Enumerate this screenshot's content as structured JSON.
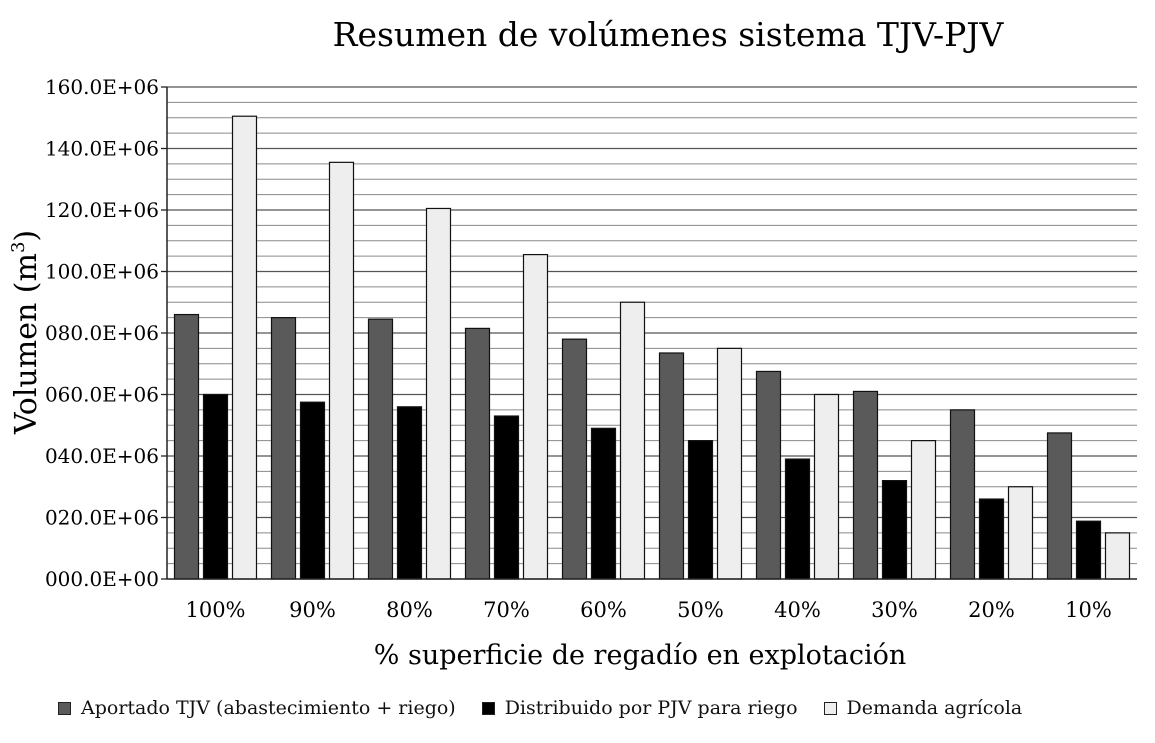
{
  "chart_data": {
    "type": "bar",
    "title": "Resumen de volúmenes sistema TJV-PJV",
    "xlabel": "% superficie de regadío en explotación",
    "ylabel": "Volumen (m",
    "ylabel_sup": "3",
    "ylabel_close": ")",
    "ylim": [
      0,
      160000000
    ],
    "yticks": [
      {
        "value": 0,
        "label": "000.0E+00"
      },
      {
        "value": 20000000,
        "label": "020.0E+06"
      },
      {
        "value": 40000000,
        "label": "040.0E+06"
      },
      {
        "value": 60000000,
        "label": "060.0E+06"
      },
      {
        "value": 80000000,
        "label": "080.0E+06"
      },
      {
        "value": 100000000,
        "label": "100.0E+06"
      },
      {
        "value": 120000000,
        "label": "120.0E+06"
      },
      {
        "value": 140000000,
        "label": "140.0E+06"
      },
      {
        "value": 160000000,
        "label": "160.0E+06"
      }
    ],
    "grid": true,
    "categories": [
      "100%",
      "90%",
      "80%",
      "70%",
      "60%",
      "50%",
      "40%",
      "30%",
      "20%",
      "10%"
    ],
    "series": [
      {
        "name": "Aportado TJV (abastecimiento + riego)",
        "color": "#5a5a5a",
        "values": [
          86000000,
          85000000,
          84500000,
          81500000,
          78000000,
          73500000,
          67500000,
          61000000,
          55000000,
          47500000
        ]
      },
      {
        "name": "Distribuido por PJV para riego",
        "color": "#000000",
        "values": [
          60000000,
          57500000,
          56000000,
          53000000,
          49000000,
          45000000,
          39000000,
          32000000,
          26000000,
          18800000
        ]
      },
      {
        "name": "Demanda agrícola",
        "color": "#eeeeee",
        "values": [
          150500000,
          135500000,
          120500000,
          105500000,
          90000000,
          75000000,
          60000000,
          45000000,
          30000000,
          15000000
        ]
      }
    ],
    "legend": "bottom"
  }
}
